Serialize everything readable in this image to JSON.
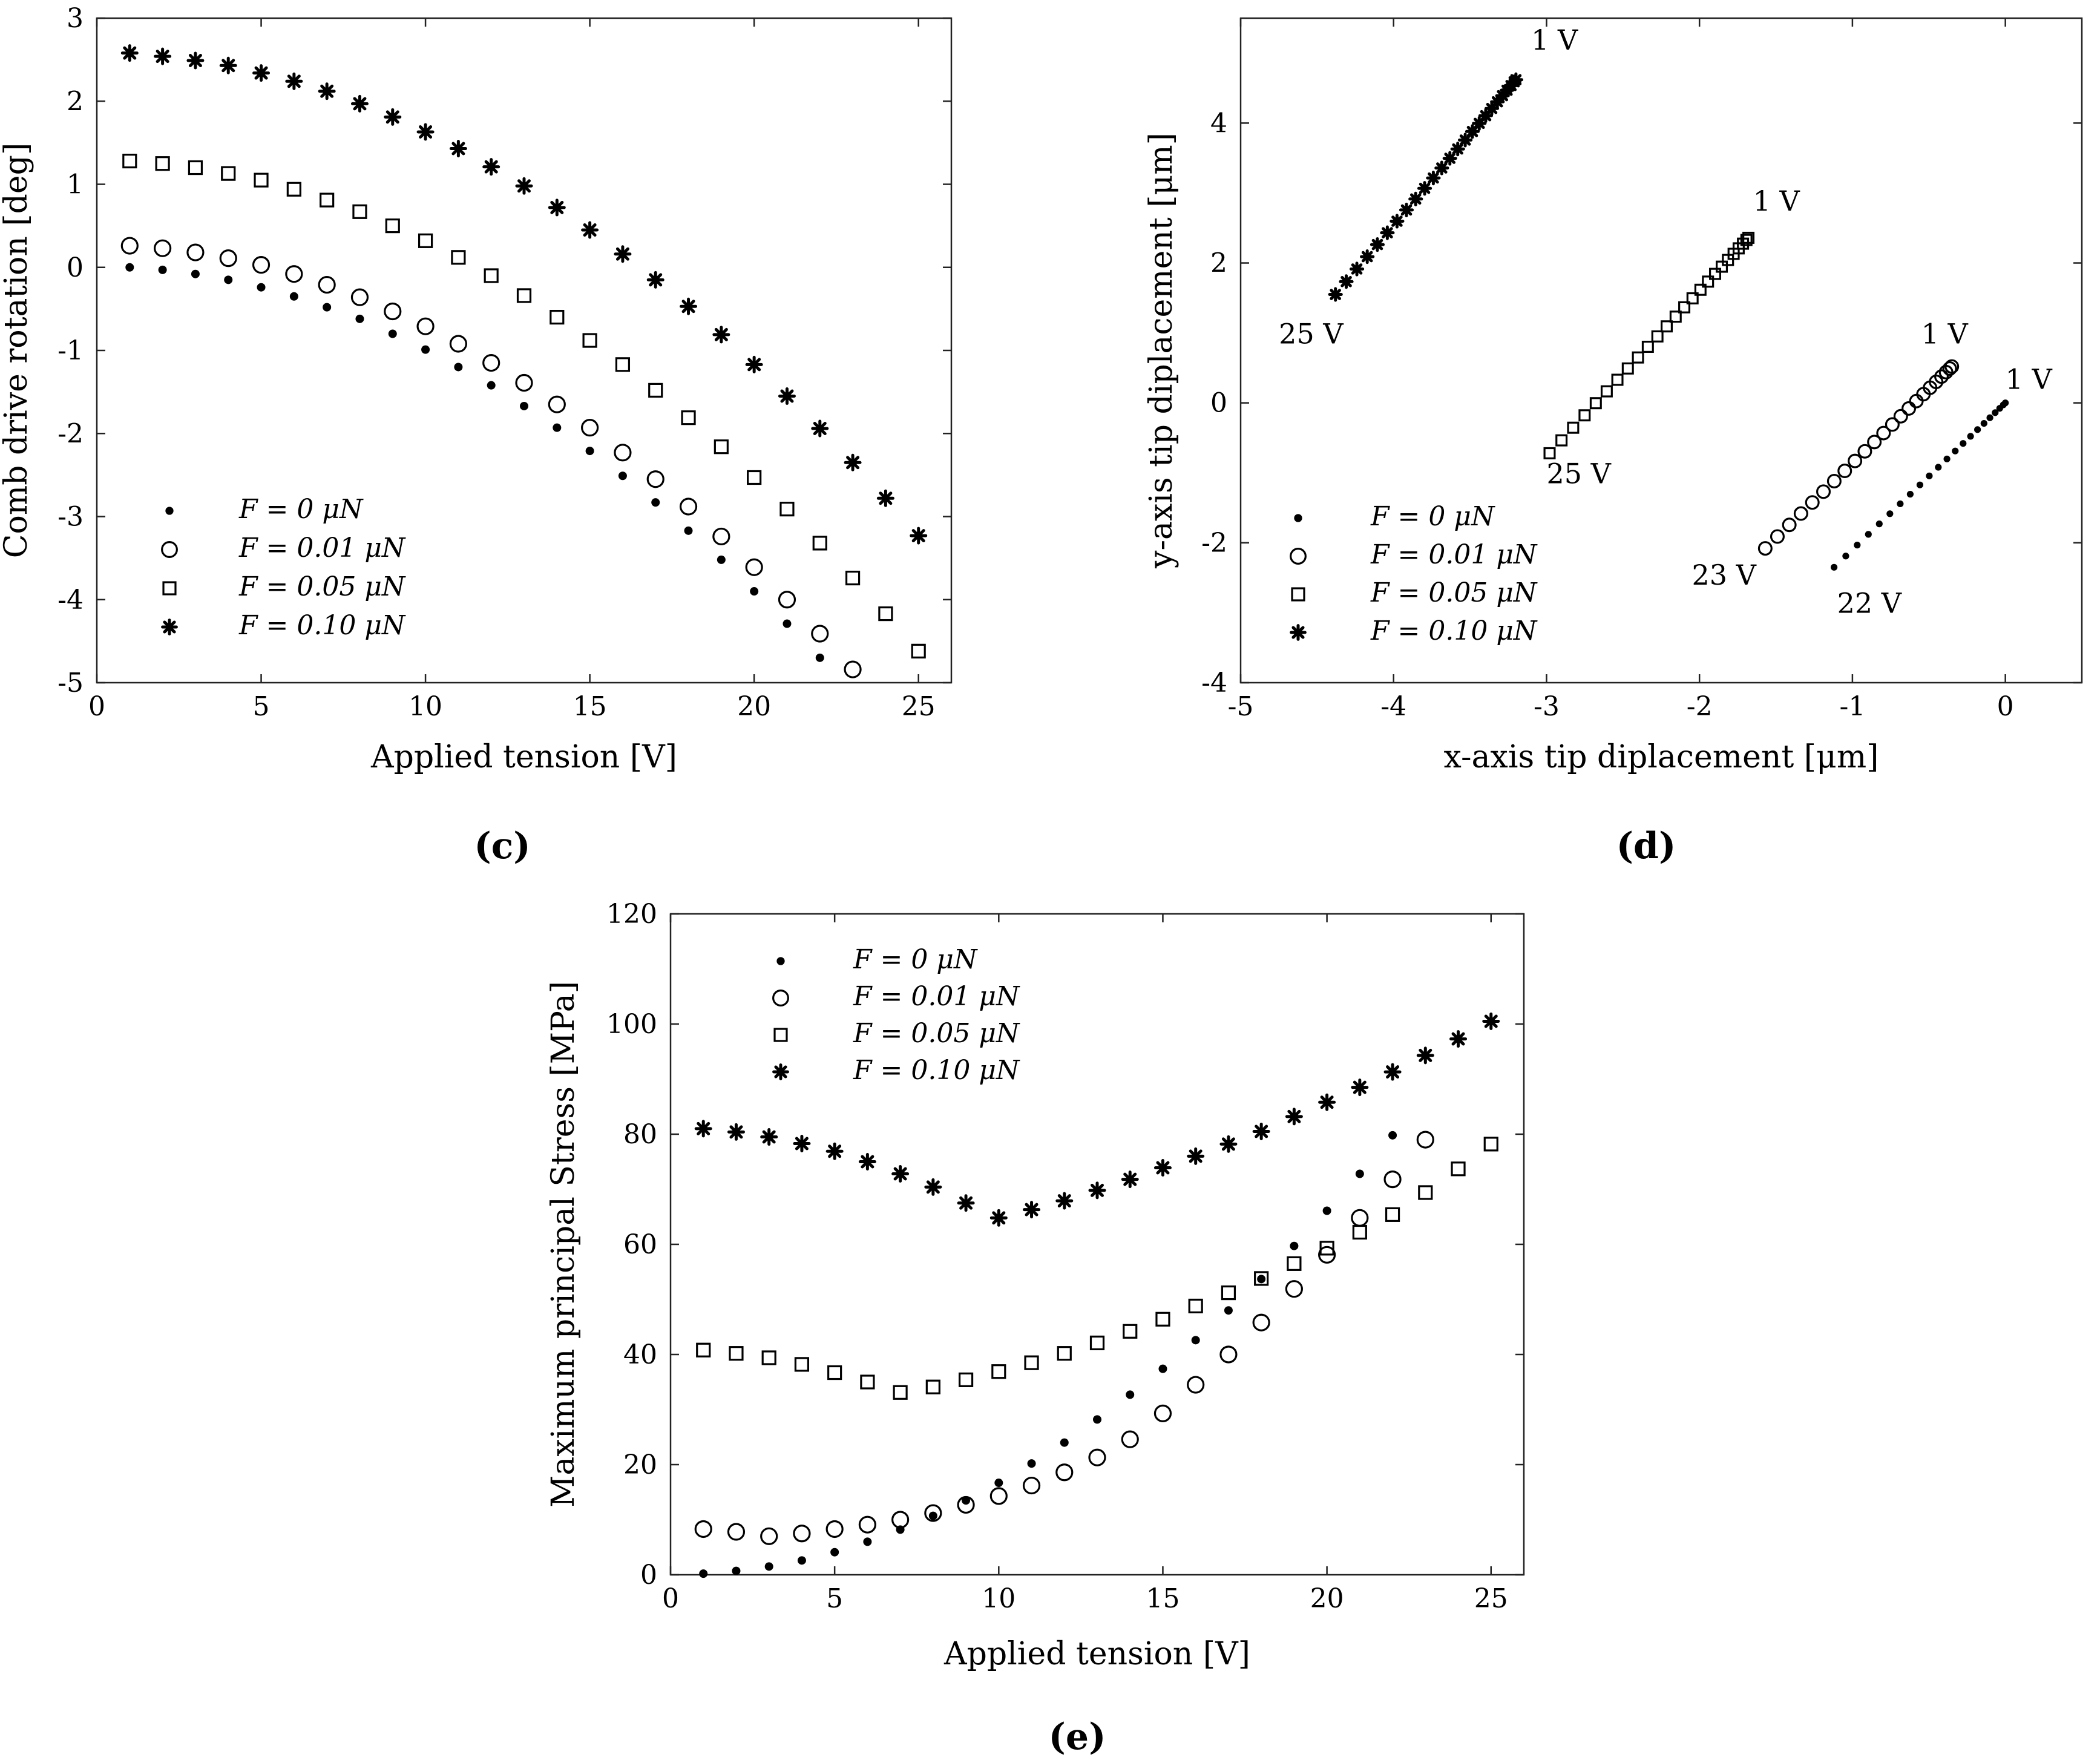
{
  "panels": {
    "c": {
      "label": "(c)"
    },
    "d": {
      "label": "(d)"
    },
    "e": {
      "label": "(e)"
    }
  },
  "legend": [
    {
      "name": "F = 0 μN",
      "marker": "dot"
    },
    {
      "name": "F = 0.01 μN",
      "marker": "circle"
    },
    {
      "name": "F = 0.05 μN",
      "marker": "square"
    },
    {
      "name": "F = 0.10 μN",
      "marker": "star"
    }
  ],
  "chart_data": [
    {
      "id": "c",
      "type": "scatter",
      "title": "",
      "xlabel": "Applied tension [V]",
      "ylabel": "Comb drive rotation [deg]",
      "xlim": [
        0,
        26
      ],
      "ylim": [
        -5,
        3
      ],
      "xticks": [
        0,
        5,
        10,
        15,
        20,
        25
      ],
      "yticks": [
        -5,
        -4,
        -3,
        -2,
        -1,
        0,
        1,
        2,
        3
      ],
      "legend_position": "bottom-left",
      "series": [
        {
          "name": "F = 0 μN",
          "marker": "dot",
          "x": [
            1,
            2,
            3,
            4,
            5,
            6,
            7,
            8,
            9,
            10,
            11,
            12,
            13,
            14,
            15,
            16,
            17,
            18,
            19,
            20,
            21,
            22
          ],
          "y": [
            0,
            -0.03,
            -0.08,
            -0.15,
            -0.24,
            -0.35,
            -0.48,
            -0.62,
            -0.8,
            -0.99,
            -1.2,
            -1.42,
            -1.67,
            -1.93,
            -2.21,
            -2.51,
            -2.83,
            -3.17,
            -3.52,
            -3.9,
            -4.29,
            -4.7
          ]
        },
        {
          "name": "F = 0.01 μN",
          "marker": "circle",
          "x": [
            1,
            2,
            3,
            4,
            5,
            6,
            7,
            8,
            9,
            10,
            11,
            12,
            13,
            14,
            15,
            16,
            17,
            18,
            19,
            20,
            21,
            22,
            23
          ],
          "y": [
            0.26,
            0.23,
            0.18,
            0.11,
            0.03,
            -0.08,
            -0.21,
            -0.36,
            -0.53,
            -0.71,
            -0.92,
            -1.15,
            -1.39,
            -1.65,
            -1.93,
            -2.23,
            -2.55,
            -2.88,
            -3.24,
            -3.61,
            -4.0,
            -4.41,
            -4.84
          ]
        },
        {
          "name": "F = 0.05 μN",
          "marker": "square",
          "x": [
            1,
            2,
            3,
            4,
            5,
            6,
            7,
            8,
            9,
            10,
            11,
            12,
            13,
            14,
            15,
            16,
            17,
            18,
            19,
            20,
            21,
            22,
            23,
            24,
            25
          ],
          "y": [
            1.28,
            1.25,
            1.2,
            1.13,
            1.05,
            0.94,
            0.81,
            0.67,
            0.5,
            0.32,
            0.12,
            -0.1,
            -0.34,
            -0.6,
            -0.88,
            -1.17,
            -1.48,
            -1.81,
            -2.16,
            -2.53,
            -2.91,
            -3.32,
            -3.74,
            -4.17,
            -4.62
          ]
        },
        {
          "name": "F = 0.10 μN",
          "marker": "star",
          "x": [
            1,
            2,
            3,
            4,
            5,
            6,
            7,
            8,
            9,
            10,
            11,
            12,
            13,
            14,
            15,
            16,
            17,
            18,
            19,
            20,
            21,
            22,
            23,
            24,
            25
          ],
          "y": [
            2.58,
            2.54,
            2.49,
            2.43,
            2.34,
            2.24,
            2.12,
            1.97,
            1.81,
            1.63,
            1.43,
            1.21,
            0.98,
            0.72,
            0.45,
            0.16,
            -0.15,
            -0.47,
            -0.81,
            -1.17,
            -1.55,
            -1.94,
            -2.35,
            -2.78,
            -3.23
          ]
        }
      ]
    },
    {
      "id": "d",
      "type": "scatter",
      "title": "",
      "xlabel": "x-axis tip diplacement [μm]",
      "ylabel": "y-axis tip diplacement [μm]",
      "xlim": [
        -5,
        0.5
      ],
      "ylim": [
        -4,
        5.5
      ],
      "xticks": [
        -5,
        -4,
        -3,
        -2,
        -1,
        0
      ],
      "yticks": [
        -4,
        -2,
        0,
        2,
        4
      ],
      "legend_position": "bottom-left",
      "annotations": [
        {
          "text": "1 V",
          "x": -3.1,
          "y": 5.05
        },
        {
          "text": "25 V",
          "x": -4.75,
          "y": 0.85
        },
        {
          "text": "1 V",
          "x": -1.65,
          "y": 2.75
        },
        {
          "text": "25 V",
          "x": -3.0,
          "y": -1.15
        },
        {
          "text": "1 V",
          "x": -0.55,
          "y": 0.85
        },
        {
          "text": "23 V",
          "x": -2.05,
          "y": -2.6
        },
        {
          "text": "1 V",
          "x": 0.0,
          "y": 0.2
        },
        {
          "text": "22 V",
          "x": -1.1,
          "y": -3.0
        }
      ],
      "series": [
        {
          "name": "F = 0 μN",
          "marker": "dot",
          "start": [
            0.0,
            0.0
          ],
          "end": [
            -1.12,
            -2.35
          ],
          "count": 22
        },
        {
          "name": "F = 0.01 μN",
          "marker": "circle",
          "start": [
            -0.35,
            0.52
          ],
          "end": [
            -1.57,
            -2.08
          ],
          "count": 23
        },
        {
          "name": "F = 0.05 μN",
          "marker": "square",
          "start": [
            -1.68,
            2.36
          ],
          "end": [
            -2.98,
            -0.72
          ],
          "count": 25
        },
        {
          "name": "F = 0.10 μN",
          "marker": "star",
          "start": [
            -3.2,
            4.62
          ],
          "end": [
            -4.38,
            1.55
          ],
          "count": 25
        }
      ]
    },
    {
      "id": "e",
      "type": "scatter",
      "title": "",
      "xlabel": "Applied tension [V]",
      "ylabel": "Maximum principal Stress [MPa]",
      "xlim": [
        0,
        26
      ],
      "ylim": [
        0,
        120
      ],
      "xticks": [
        0,
        5,
        10,
        15,
        20,
        25
      ],
      "yticks": [
        0,
        20,
        40,
        60,
        80,
        100,
        120
      ],
      "legend_position": "top-left",
      "series": [
        {
          "name": "F = 0 μN",
          "marker": "dot",
          "x": [
            1,
            2,
            3,
            4,
            5,
            6,
            7,
            8,
            9,
            10,
            11,
            12,
            13,
            14,
            15,
            16,
            17,
            18,
            19,
            20,
            21,
            22
          ],
          "y": [
            0.2,
            0.7,
            1.5,
            2.6,
            4.1,
            6.0,
            8.2,
            10.7,
            13.5,
            16.7,
            20.2,
            24.0,
            28.2,
            32.7,
            37.4,
            42.6,
            48.0,
            53.7,
            59.7,
            66.1,
            72.8,
            79.8
          ]
        },
        {
          "name": "F = 0.01 μN",
          "marker": "circle",
          "x": [
            1,
            2,
            3,
            4,
            5,
            6,
            7,
            8,
            9,
            10,
            11,
            12,
            13,
            14,
            15,
            16,
            17,
            18,
            19,
            20,
            21,
            22,
            23
          ],
          "y": [
            8.3,
            7.8,
            7.0,
            7.5,
            8.3,
            9.1,
            10.0,
            11.2,
            12.7,
            14.3,
            16.2,
            18.6,
            21.3,
            24.6,
            29.3,
            34.5,
            40.0,
            45.8,
            51.9,
            58.1,
            64.8,
            71.8,
            79.0
          ]
        },
        {
          "name": "F = 0.05 μN",
          "marker": "square",
          "x": [
            1,
            2,
            3,
            4,
            5,
            6,
            7,
            8,
            9,
            10,
            11,
            12,
            13,
            14,
            15,
            16,
            17,
            18,
            19,
            20,
            21,
            22,
            23,
            24,
            25
          ],
          "y": [
            40.8,
            40.2,
            39.4,
            38.2,
            36.7,
            35.0,
            33.1,
            34.1,
            35.4,
            36.9,
            38.5,
            40.2,
            42.1,
            44.2,
            46.4,
            48.8,
            51.2,
            53.8,
            56.5,
            59.3,
            62.2,
            65.4,
            69.4,
            73.7,
            78.2
          ]
        },
        {
          "name": "F = 0.10 μN",
          "marker": "star",
          "x": [
            1,
            2,
            3,
            4,
            5,
            6,
            7,
            8,
            9,
            10,
            11,
            12,
            13,
            14,
            15,
            16,
            17,
            18,
            19,
            20,
            21,
            22,
            23,
            24,
            25
          ],
          "y": [
            81.0,
            80.4,
            79.5,
            78.3,
            76.9,
            75.0,
            72.8,
            70.4,
            67.5,
            64.8,
            66.3,
            67.9,
            69.8,
            71.8,
            73.9,
            76.0,
            78.2,
            80.5,
            83.2,
            85.8,
            88.5,
            91.3,
            94.3,
            97.3,
            100.5
          ]
        }
      ]
    }
  ]
}
